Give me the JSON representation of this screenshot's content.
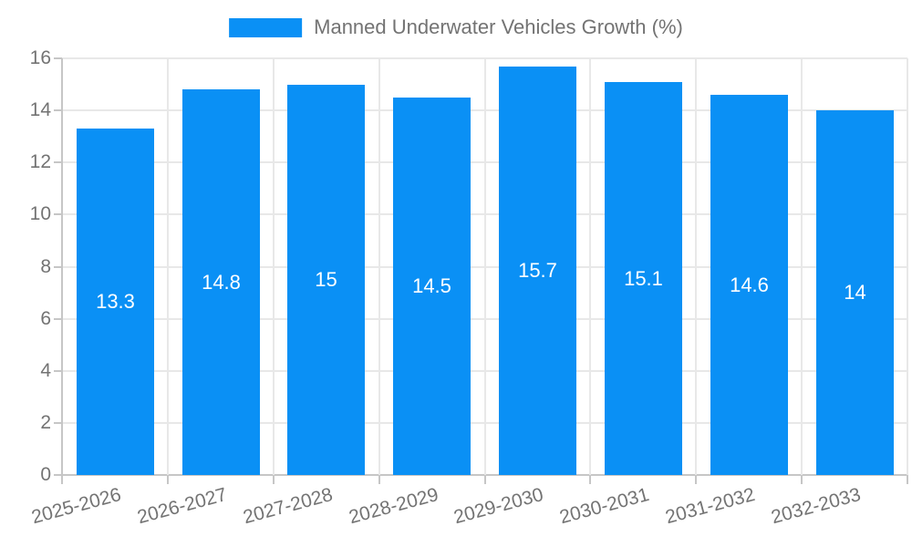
{
  "legend": {
    "label": "Manned Underwater Vehicles Growth (%)"
  },
  "chart_data": {
    "type": "bar",
    "title": "Manned Underwater Vehicles Growth (%)",
    "categories": [
      "2025-2026",
      "2026-2027",
      "2027-2028",
      "2028-2029",
      "2029-2030",
      "2030-2031",
      "2031-2032",
      "2032-2033"
    ],
    "values": [
      13.3,
      14.8,
      15,
      14.5,
      15.7,
      15.1,
      14.6,
      14
    ],
    "bar_labels": [
      "13.3",
      "14.8",
      "15",
      "14.5",
      "15.7",
      "15.1",
      "14.6",
      "14"
    ],
    "xlabel": "",
    "ylabel": "",
    "ylim": [
      0,
      16
    ],
    "yticks": [
      0,
      2,
      4,
      6,
      8,
      10,
      12,
      14,
      16
    ],
    "grid": true,
    "legend_position": "top",
    "bar_width_fraction": 0.73,
    "x_label_rotation_deg": -15,
    "colors": {
      "bar": "#0a90f5",
      "bar_label": "#ffffff",
      "axis_text": "#737373",
      "grid_line": "#e8e8e8",
      "axis_line": "#c6c6c6"
    }
  }
}
